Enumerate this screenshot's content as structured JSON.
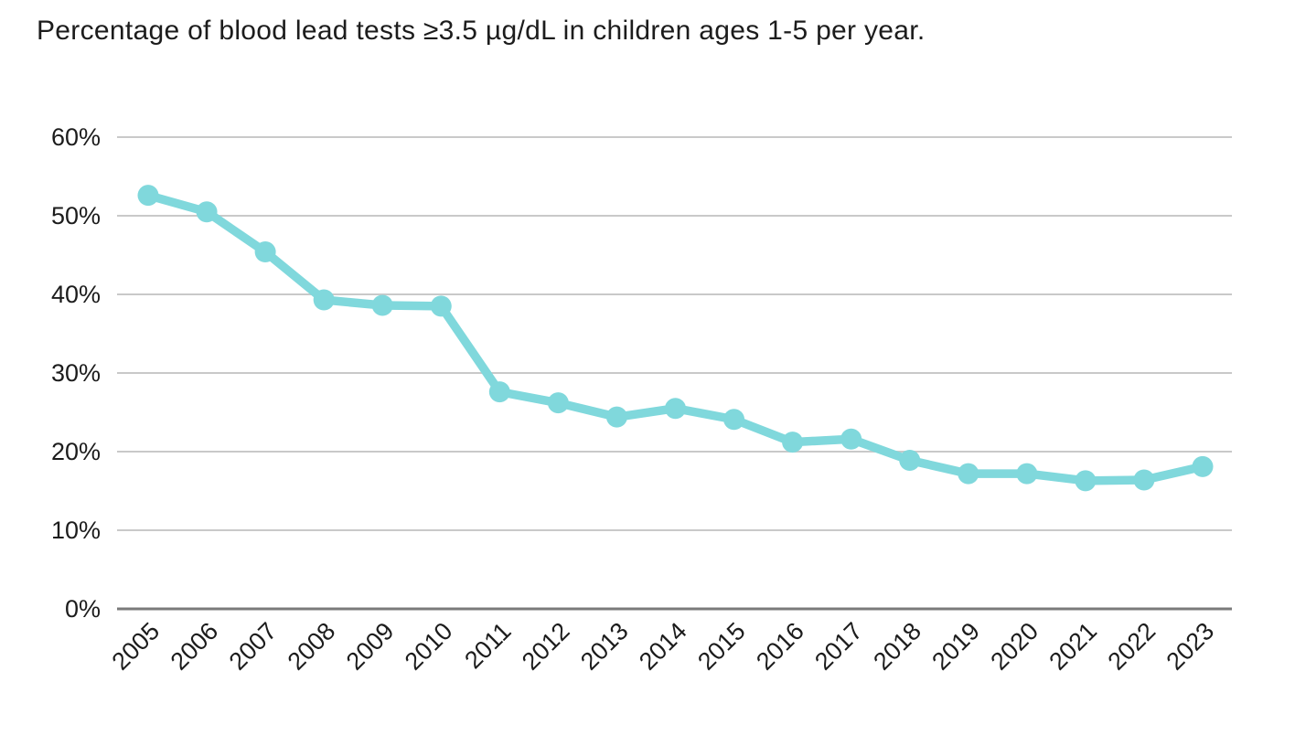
{
  "title": "Percentage of blood lead tests ≥3.5 µg/dL in children ages 1-5 per year.",
  "chart_data": {
    "type": "line",
    "title": "Percentage of blood lead tests ≥3.5 µg/dL in children ages 1-5 per year.",
    "x_labels": [
      "2005",
      "2006",
      "2007",
      "2008",
      "2009",
      "2010",
      "2011",
      "2012",
      "2013",
      "2014",
      "2015",
      "2016",
      "2017",
      "2018",
      "2019",
      "2020",
      "2021",
      "2022",
      "2023"
    ],
    "values": [
      52.6,
      50.5,
      45.4,
      39.3,
      38.6,
      38.5,
      27.6,
      26.2,
      24.4,
      25.5,
      24.1,
      21.2,
      21.6,
      18.9,
      17.2,
      17.2,
      16.3,
      16.4,
      18.1
    ],
    "unit": "%",
    "xlabel": "",
    "ylabel": "",
    "ylim": [
      0,
      60
    ],
    "yticks": [
      {
        "value": 0,
        "label": "0%"
      },
      {
        "value": 10,
        "label": "10%"
      },
      {
        "value": 20,
        "label": "20%"
      },
      {
        "value": 30,
        "label": "30%"
      },
      {
        "value": 40,
        "label": "40%"
      },
      {
        "value": 50,
        "label": "50%"
      },
      {
        "value": 60,
        "label": "60%"
      }
    ],
    "grid": true,
    "legend": false,
    "marker": "circle",
    "x_label_rotation_deg": 45,
    "line_color": "#80d8dc",
    "grid_color": "#c9c9c9",
    "axis_line_color": "#7a7a7a",
    "text_color": "#1c1c1c"
  }
}
